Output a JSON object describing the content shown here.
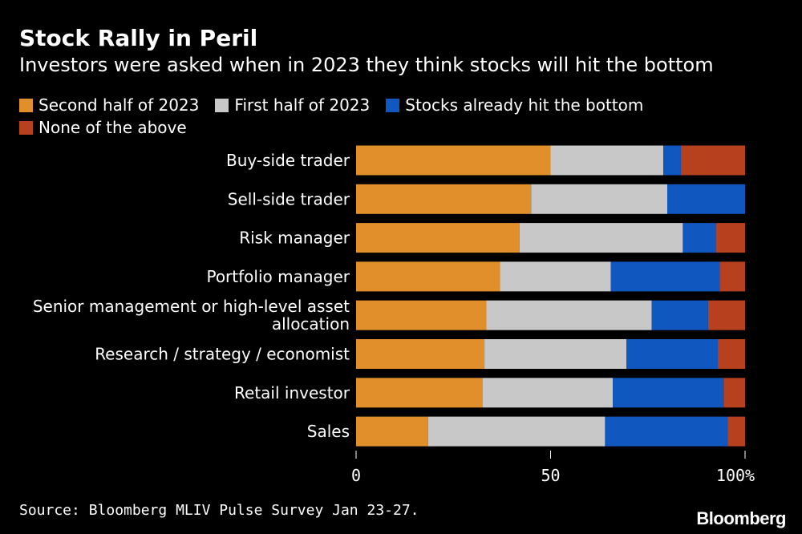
{
  "chart_data": {
    "type": "bar",
    "orientation": "horizontal",
    "stacked": true,
    "title": "Stock Rally in Peril",
    "subtitle": "Investors were asked when in 2023 they think stocks will hit the bottom",
    "categories": [
      "Buy-side trader",
      "Sell-side trader",
      "Risk manager",
      "Portfolio manager",
      "Senior management or high-level asset allocation",
      "Research / strategy / economist",
      "Retail investor",
      "Sales"
    ],
    "category_lines": [
      [
        "Buy-side trader"
      ],
      [
        "Sell-side trader"
      ],
      [
        "Risk manager"
      ],
      [
        "Portfolio manager"
      ],
      [
        "Senior management or high-level asset",
        "allocation"
      ],
      [
        "Research / strategy / economist"
      ],
      [
        "Retail investor"
      ],
      [
        "Sales"
      ]
    ],
    "series": [
      {
        "name": "Second half of 2023",
        "color": "#e08f2b",
        "values": [
          50,
          45,
          42,
          37,
          33.5,
          33,
          32.5,
          18.5
        ]
      },
      {
        "name": "First half of 2023",
        "color": "#c8c8c8",
        "values": [
          29,
          35,
          42,
          28.5,
          42.5,
          36.5,
          33.5,
          45.5
        ]
      },
      {
        "name": "Stocks already hit the bottom",
        "color": "#1058c0",
        "values": [
          4.5,
          20,
          8.5,
          28,
          14.5,
          23.5,
          28.5,
          31.5
        ]
      },
      {
        "name": "None of the above",
        "color": "#b7401e",
        "values": [
          16.5,
          0,
          7.5,
          6.5,
          9.5,
          7,
          5.5,
          4.5
        ]
      }
    ],
    "xlim": [
      0,
      100
    ],
    "xticks": [
      "0",
      "50",
      "100%"
    ],
    "xlabel": "",
    "ylabel": "",
    "legend_position": "top-left",
    "grid": false
  },
  "source": "Source: Bloomberg MLIV Pulse Survey Jan 23-27.",
  "brand": "Bloomberg"
}
